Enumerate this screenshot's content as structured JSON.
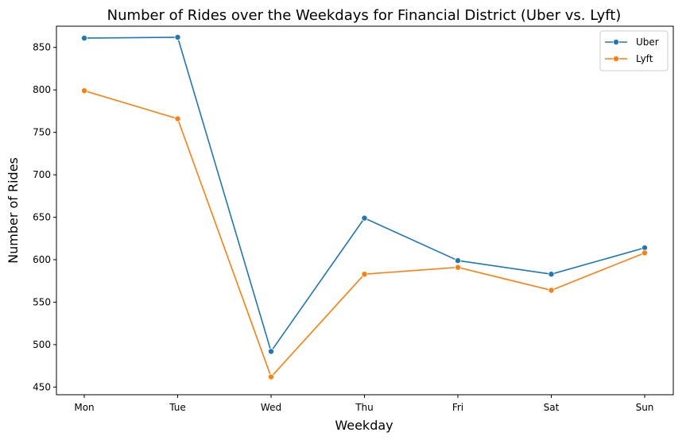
{
  "chart_data": {
    "type": "line",
    "title": "Number of Rides over the Weekdays for Financial District (Uber vs. Lyft)",
    "xlabel": "Weekday",
    "ylabel": "Number of Rides",
    "categories": [
      "Mon",
      "Tue",
      "Wed",
      "Thu",
      "Fri",
      "Sat",
      "Sun"
    ],
    "ylim": [
      441,
      875
    ],
    "yticks": [
      450,
      500,
      550,
      600,
      650,
      700,
      750,
      800,
      850
    ],
    "grid": false,
    "legend": "top-right",
    "series": [
      {
        "name": "Uber",
        "color": "#1f77b4",
        "marker": "circle",
        "values": [
          861,
          862,
          492,
          649,
          599,
          583,
          614
        ]
      },
      {
        "name": "Lyft",
        "color": "#ff7f0e",
        "marker": "circle",
        "values": [
          799,
          766,
          462,
          583,
          591,
          564,
          608
        ]
      }
    ]
  }
}
